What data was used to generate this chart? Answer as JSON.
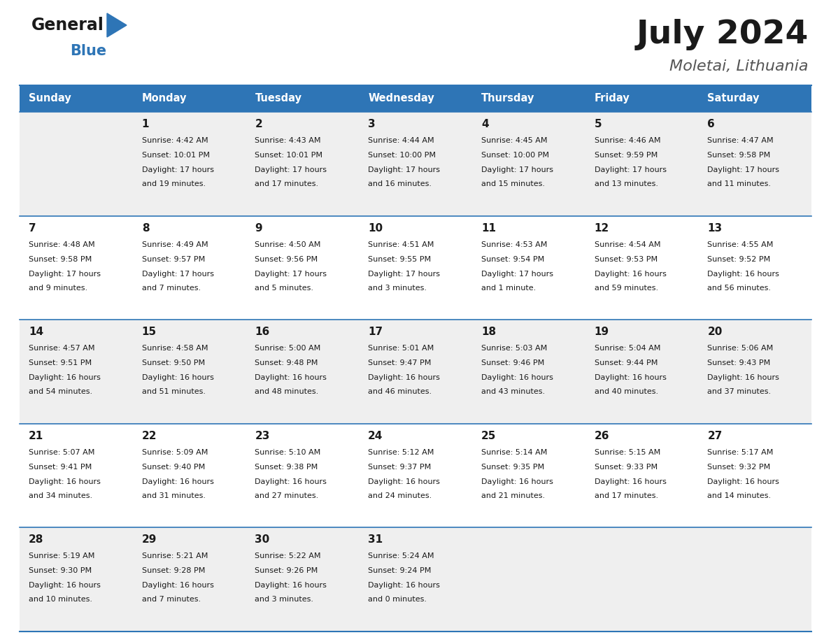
{
  "title": "July 2024",
  "subtitle": "Moletai, Lithuania",
  "header_bg": "#2E75B6",
  "header_text_color": "#FFFFFF",
  "cell_bg_odd": "#EFEFEF",
  "cell_bg_even": "#FFFFFF",
  "separator_color": "#2E75B6",
  "days_of_week": [
    "Sunday",
    "Monday",
    "Tuesday",
    "Wednesday",
    "Thursday",
    "Friday",
    "Saturday"
  ],
  "weeks": [
    [
      {
        "day": "",
        "sunrise": "",
        "sunset": "",
        "daylight": ""
      },
      {
        "day": "1",
        "sunrise": "4:42 AM",
        "sunset": "10:01 PM",
        "daylight": "17 hours\nand 19 minutes."
      },
      {
        "day": "2",
        "sunrise": "4:43 AM",
        "sunset": "10:01 PM",
        "daylight": "17 hours\nand 17 minutes."
      },
      {
        "day": "3",
        "sunrise": "4:44 AM",
        "sunset": "10:00 PM",
        "daylight": "17 hours\nand 16 minutes."
      },
      {
        "day": "4",
        "sunrise": "4:45 AM",
        "sunset": "10:00 PM",
        "daylight": "17 hours\nand 15 minutes."
      },
      {
        "day": "5",
        "sunrise": "4:46 AM",
        "sunset": "9:59 PM",
        "daylight": "17 hours\nand 13 minutes."
      },
      {
        "day": "6",
        "sunrise": "4:47 AM",
        "sunset": "9:58 PM",
        "daylight": "17 hours\nand 11 minutes."
      }
    ],
    [
      {
        "day": "7",
        "sunrise": "4:48 AM",
        "sunset": "9:58 PM",
        "daylight": "17 hours\nand 9 minutes."
      },
      {
        "day": "8",
        "sunrise": "4:49 AM",
        "sunset": "9:57 PM",
        "daylight": "17 hours\nand 7 minutes."
      },
      {
        "day": "9",
        "sunrise": "4:50 AM",
        "sunset": "9:56 PM",
        "daylight": "17 hours\nand 5 minutes."
      },
      {
        "day": "10",
        "sunrise": "4:51 AM",
        "sunset": "9:55 PM",
        "daylight": "17 hours\nand 3 minutes."
      },
      {
        "day": "11",
        "sunrise": "4:53 AM",
        "sunset": "9:54 PM",
        "daylight": "17 hours\nand 1 minute."
      },
      {
        "day": "12",
        "sunrise": "4:54 AM",
        "sunset": "9:53 PM",
        "daylight": "16 hours\nand 59 minutes."
      },
      {
        "day": "13",
        "sunrise": "4:55 AM",
        "sunset": "9:52 PM",
        "daylight": "16 hours\nand 56 minutes."
      }
    ],
    [
      {
        "day": "14",
        "sunrise": "4:57 AM",
        "sunset": "9:51 PM",
        "daylight": "16 hours\nand 54 minutes."
      },
      {
        "day": "15",
        "sunrise": "4:58 AM",
        "sunset": "9:50 PM",
        "daylight": "16 hours\nand 51 minutes."
      },
      {
        "day": "16",
        "sunrise": "5:00 AM",
        "sunset": "9:48 PM",
        "daylight": "16 hours\nand 48 minutes."
      },
      {
        "day": "17",
        "sunrise": "5:01 AM",
        "sunset": "9:47 PM",
        "daylight": "16 hours\nand 46 minutes."
      },
      {
        "day": "18",
        "sunrise": "5:03 AM",
        "sunset": "9:46 PM",
        "daylight": "16 hours\nand 43 minutes."
      },
      {
        "day": "19",
        "sunrise": "5:04 AM",
        "sunset": "9:44 PM",
        "daylight": "16 hours\nand 40 minutes."
      },
      {
        "day": "20",
        "sunrise": "5:06 AM",
        "sunset": "9:43 PM",
        "daylight": "16 hours\nand 37 minutes."
      }
    ],
    [
      {
        "day": "21",
        "sunrise": "5:07 AM",
        "sunset": "9:41 PM",
        "daylight": "16 hours\nand 34 minutes."
      },
      {
        "day": "22",
        "sunrise": "5:09 AM",
        "sunset": "9:40 PM",
        "daylight": "16 hours\nand 31 minutes."
      },
      {
        "day": "23",
        "sunrise": "5:10 AM",
        "sunset": "9:38 PM",
        "daylight": "16 hours\nand 27 minutes."
      },
      {
        "day": "24",
        "sunrise": "5:12 AM",
        "sunset": "9:37 PM",
        "daylight": "16 hours\nand 24 minutes."
      },
      {
        "day": "25",
        "sunrise": "5:14 AM",
        "sunset": "9:35 PM",
        "daylight": "16 hours\nand 21 minutes."
      },
      {
        "day": "26",
        "sunrise": "5:15 AM",
        "sunset": "9:33 PM",
        "daylight": "16 hours\nand 17 minutes."
      },
      {
        "day": "27",
        "sunrise": "5:17 AM",
        "sunset": "9:32 PM",
        "daylight": "16 hours\nand 14 minutes."
      }
    ],
    [
      {
        "day": "28",
        "sunrise": "5:19 AM",
        "sunset": "9:30 PM",
        "daylight": "16 hours\nand 10 minutes."
      },
      {
        "day": "29",
        "sunrise": "5:21 AM",
        "sunset": "9:28 PM",
        "daylight": "16 hours\nand 7 minutes."
      },
      {
        "day": "30",
        "sunrise": "5:22 AM",
        "sunset": "9:26 PM",
        "daylight": "16 hours\nand 3 minutes."
      },
      {
        "day": "31",
        "sunrise": "5:24 AM",
        "sunset": "9:24 PM",
        "daylight": "16 hours\nand 0 minutes."
      },
      {
        "day": "",
        "sunrise": "",
        "sunset": "",
        "daylight": ""
      },
      {
        "day": "",
        "sunrise": "",
        "sunset": "",
        "daylight": ""
      },
      {
        "day": "",
        "sunrise": "",
        "sunset": "",
        "daylight": ""
      }
    ]
  ]
}
